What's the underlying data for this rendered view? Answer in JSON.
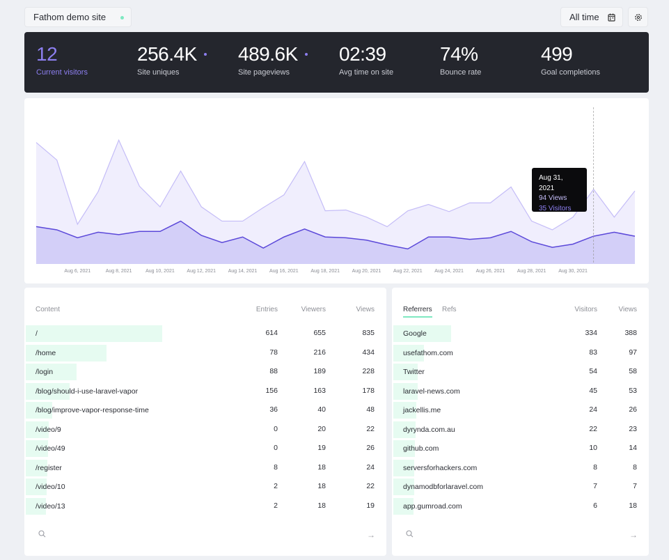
{
  "header": {
    "site_name": "Fathom demo site",
    "date_range": "All time",
    "icons": [
      "calendar-icon",
      "gear-icon"
    ]
  },
  "stats": [
    {
      "value": "12",
      "label": "Current visitors",
      "accent": true
    },
    {
      "value": "256.4K",
      "label": "Site uniques",
      "dot": true
    },
    {
      "value": "489.6K",
      "label": "Site pageviews",
      "dot": true
    },
    {
      "value": "02:39",
      "label": "Avg time on site"
    },
    {
      "value": "74%",
      "label": "Bounce rate"
    },
    {
      "value": "499",
      "label": "Goal completions"
    }
  ],
  "colors": {
    "accent": "#8d7ff0",
    "views_fill": "#f0eefd",
    "views_line": "#c4bcf7",
    "visitors_fill": "#d3cff8",
    "visitors_line": "#5b48d9",
    "bar": "#e6fbf1",
    "tab_underline": "#7ee8c1",
    "dark": "#24262d"
  },
  "chart_data": {
    "type": "area",
    "x": [
      "Aug 4",
      "Aug 5",
      "Aug 6",
      "Aug 7",
      "Aug 8",
      "Aug 9",
      "Aug 10",
      "Aug 11",
      "Aug 12",
      "Aug 13",
      "Aug 14",
      "Aug 15",
      "Aug 16",
      "Aug 17",
      "Aug 18",
      "Aug 19",
      "Aug 20",
      "Aug 21",
      "Aug 22",
      "Aug 23",
      "Aug 24",
      "Aug 25",
      "Aug 26",
      "Aug 27",
      "Aug 28",
      "Aug 29",
      "Aug 30",
      "Aug 31",
      "Sep 1",
      "Sep 2"
    ],
    "series": [
      {
        "name": "Views",
        "values": [
          153,
          131,
          50,
          91,
          156,
          98,
          72,
          117,
          72,
          54,
          54,
          71,
          87,
          129,
          67,
          68,
          59,
          47,
          67,
          75,
          66,
          77,
          77,
          97,
          54,
          43,
          59,
          94,
          59,
          92
        ]
      },
      {
        "name": "Visitors",
        "values": [
          47,
          43,
          33,
          40,
          37,
          41,
          41,
          54,
          36,
          27,
          34,
          20,
          34,
          44,
          34,
          33,
          30,
          24,
          19,
          34,
          34,
          31,
          33,
          41,
          28,
          21,
          25,
          35,
          40,
          35
        ]
      }
    ],
    "tick_labels": [
      "Aug 6, 2021",
      "Aug 8, 2021",
      "Aug 10, 2021",
      "Aug 12, 2021",
      "Aug 14, 2021",
      "Aug 16, 2021",
      "Aug 18, 2021",
      "Aug 20, 2021",
      "Aug 22, 2021",
      "Aug 24, 2021",
      "Aug 26, 2021",
      "Aug 28, 2021",
      "Aug 30, 2021"
    ],
    "ylim": [
      0,
      200
    ],
    "grid": false,
    "tooltip": {
      "date": "Aug 31, 2021",
      "views": "94 Views",
      "visitors": "35 Visitors",
      "index": 27
    }
  },
  "content": {
    "headers": [
      "Content",
      "Entries",
      "Viewers",
      "Views"
    ],
    "rows": [
      {
        "path": "/",
        "entries": "614",
        "viewers": "655",
        "views": "835",
        "bar": 39
      },
      {
        "path": "/home",
        "entries": "78",
        "viewers": "216",
        "views": "434",
        "bar": 23
      },
      {
        "path": "/login",
        "entries": "88",
        "viewers": "189",
        "views": "228",
        "bar": 14.5
      },
      {
        "path": "/blog/should-i-use-laravel-vapor",
        "entries": "156",
        "viewers": "163",
        "views": "178",
        "bar": 12.5
      },
      {
        "path": "/blog/improve-vapor-response-time",
        "entries": "36",
        "viewers": "40",
        "views": "48",
        "bar": 7.5
      },
      {
        "path": "/video/9",
        "entries": "0",
        "viewers": "20",
        "views": "22",
        "bar": 6.6
      },
      {
        "path": "/video/49",
        "entries": "0",
        "viewers": "19",
        "views": "26",
        "bar": 6.4
      },
      {
        "path": "/register",
        "entries": "8",
        "viewers": "18",
        "views": "24",
        "bar": 6.2
      },
      {
        "path": "/video/10",
        "entries": "2",
        "viewers": "18",
        "views": "22",
        "bar": 6
      },
      {
        "path": "/video/13",
        "entries": "2",
        "viewers": "18",
        "views": "19",
        "bar": 5.8
      }
    ]
  },
  "referrers": {
    "tabs": [
      "Referrers",
      "Refs"
    ],
    "headers": [
      "Visitors",
      "Views"
    ],
    "rows": [
      {
        "name": "Google",
        "visitors": "334",
        "views": "388",
        "bar": 23.5
      },
      {
        "name": "usefathom.com",
        "visitors": "83",
        "views": "97",
        "bar": 12.5
      },
      {
        "name": "Twitter",
        "visitors": "54",
        "views": "58",
        "bar": 10
      },
      {
        "name": "laravel-news.com",
        "visitors": "45",
        "views": "53",
        "bar": 10
      },
      {
        "name": "jackellis.me",
        "visitors": "24",
        "views": "26",
        "bar": 9.3
      },
      {
        "name": "dyrynda.com.au",
        "visitors": "22",
        "views": "23",
        "bar": 9.2
      },
      {
        "name": "github.com",
        "visitors": "10",
        "views": "14",
        "bar": 8.8
      },
      {
        "name": "serversforhackers.com",
        "visitors": "8",
        "views": "8",
        "bar": 8.5
      },
      {
        "name": "dynamodbforlaravel.com",
        "visitors": "7",
        "views": "7",
        "bar": 8.4
      },
      {
        "name": "app.gumroad.com",
        "visitors": "6",
        "views": "18",
        "bar": 8.2
      }
    ]
  }
}
